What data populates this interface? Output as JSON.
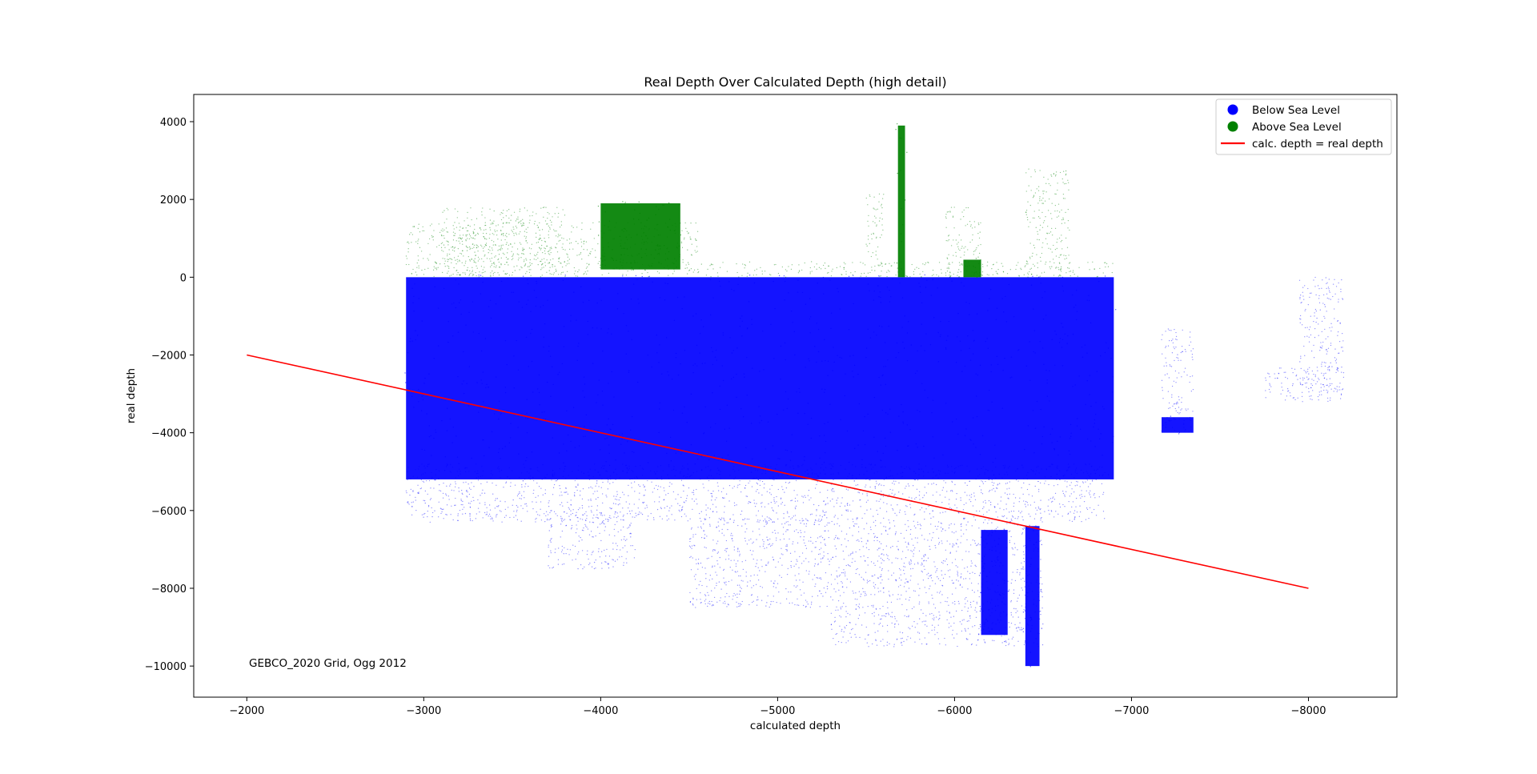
{
  "chart_data": {
    "type": "scatter",
    "title": "Real Depth Over Calculated Depth (high detail)",
    "xlabel": "calculated depth",
    "ylabel": "real depth",
    "xlim": [
      -1700,
      -8500
    ],
    "ylim": [
      -10800,
      4700
    ],
    "x_ticks": [
      -2000,
      -3000,
      -4000,
      -5000,
      -6000,
      -7000,
      -8000
    ],
    "x_tick_labels": [
      "−2000",
      "−3000",
      "−4000",
      "−5000",
      "−6000",
      "−7000",
      "−8000"
    ],
    "y_ticks": [
      4000,
      2000,
      0,
      -2000,
      -4000,
      -6000,
      -8000,
      -10000
    ],
    "y_tick_labels": [
      "4000",
      "2000",
      "0",
      "−2000",
      "−4000",
      "−6000",
      "−8000",
      "−10000"
    ],
    "grid": false,
    "legend_position": "top-right",
    "annotation": "GEBCO_2020 Grid, Ogg 2012",
    "series": [
      {
        "name": "Below Sea Level",
        "color": "#0000ff",
        "marker": "point-cloud",
        "regions": [
          {
            "x": [
              -2900,
              -6900
            ],
            "y": [
              -5200,
              0
            ],
            "fill": "dense"
          },
          {
            "x": [
              -2900,
              -6850
            ],
            "y": [
              -6300,
              -4800
            ],
            "fill": "sparse"
          },
          {
            "x": [
              -3700,
              -4200
            ],
            "y": [
              -7500,
              -6000
            ],
            "fill": "sparse"
          },
          {
            "x": [
              -4500,
              -5300
            ],
            "y": [
              -8500,
              -6200
            ],
            "fill": "sparse"
          },
          {
            "x": [
              -5300,
              -6500
            ],
            "y": [
              -9500,
              -6300
            ],
            "fill": "sparse"
          },
          {
            "x": [
              -6150,
              -6300
            ],
            "y": [
              -9200,
              -6500
            ],
            "fill": "dense"
          },
          {
            "x": [
              -6400,
              -6480
            ],
            "y": [
              -10000,
              -6400
            ],
            "fill": "dense"
          },
          {
            "x": [
              -7170,
              -7350
            ],
            "y": [
              -4000,
              -1300
            ],
            "fill": "sparse"
          },
          {
            "x": [
              -7170,
              -7350
            ],
            "y": [
              -4000,
              -3600
            ],
            "fill": "dense"
          },
          {
            "x": [
              -7750,
              -8200
            ],
            "y": [
              -3200,
              -2300
            ],
            "fill": "sparse"
          },
          {
            "x": [
              -7950,
              -8200
            ],
            "y": [
              -3000,
              0
            ],
            "fill": "sparse"
          }
        ]
      },
      {
        "name": "Above Sea Level",
        "color": "#008000",
        "marker": "point-cloud",
        "regions": [
          {
            "x": [
              -2900,
              -4550
            ],
            "y": [
              0,
              1400
            ],
            "fill": "sparse"
          },
          {
            "x": [
              -3100,
              -3800
            ],
            "y": [
              0,
              1800
            ],
            "fill": "sparse"
          },
          {
            "x": [
              -4000,
              -4450
            ],
            "y": [
              200,
              1900
            ],
            "fill": "dense"
          },
          {
            "x": [
              -4550,
              -6900
            ],
            "y": [
              0,
              400
            ],
            "fill": "sparse"
          },
          {
            "x": [
              -5500,
              -5600
            ],
            "y": [
              0,
              2200
            ],
            "fill": "sparse"
          },
          {
            "x": [
              -5680,
              -5720
            ],
            "y": [
              0,
              3900
            ],
            "fill": "dense"
          },
          {
            "x": [
              -5950,
              -6150
            ],
            "y": [
              0,
              1800
            ],
            "fill": "sparse"
          },
          {
            "x": [
              -6400,
              -6650
            ],
            "y": [
              0,
              2800
            ],
            "fill": "sparse"
          },
          {
            "x": [
              -6050,
              -6150
            ],
            "y": [
              0,
              450
            ],
            "fill": "dense"
          }
        ]
      },
      {
        "name": "calc. depth = real depth",
        "type": "line",
        "color": "#ff0000",
        "x": [
          -2000,
          -8000
        ],
        "y": [
          -2000,
          -8000
        ]
      }
    ]
  }
}
